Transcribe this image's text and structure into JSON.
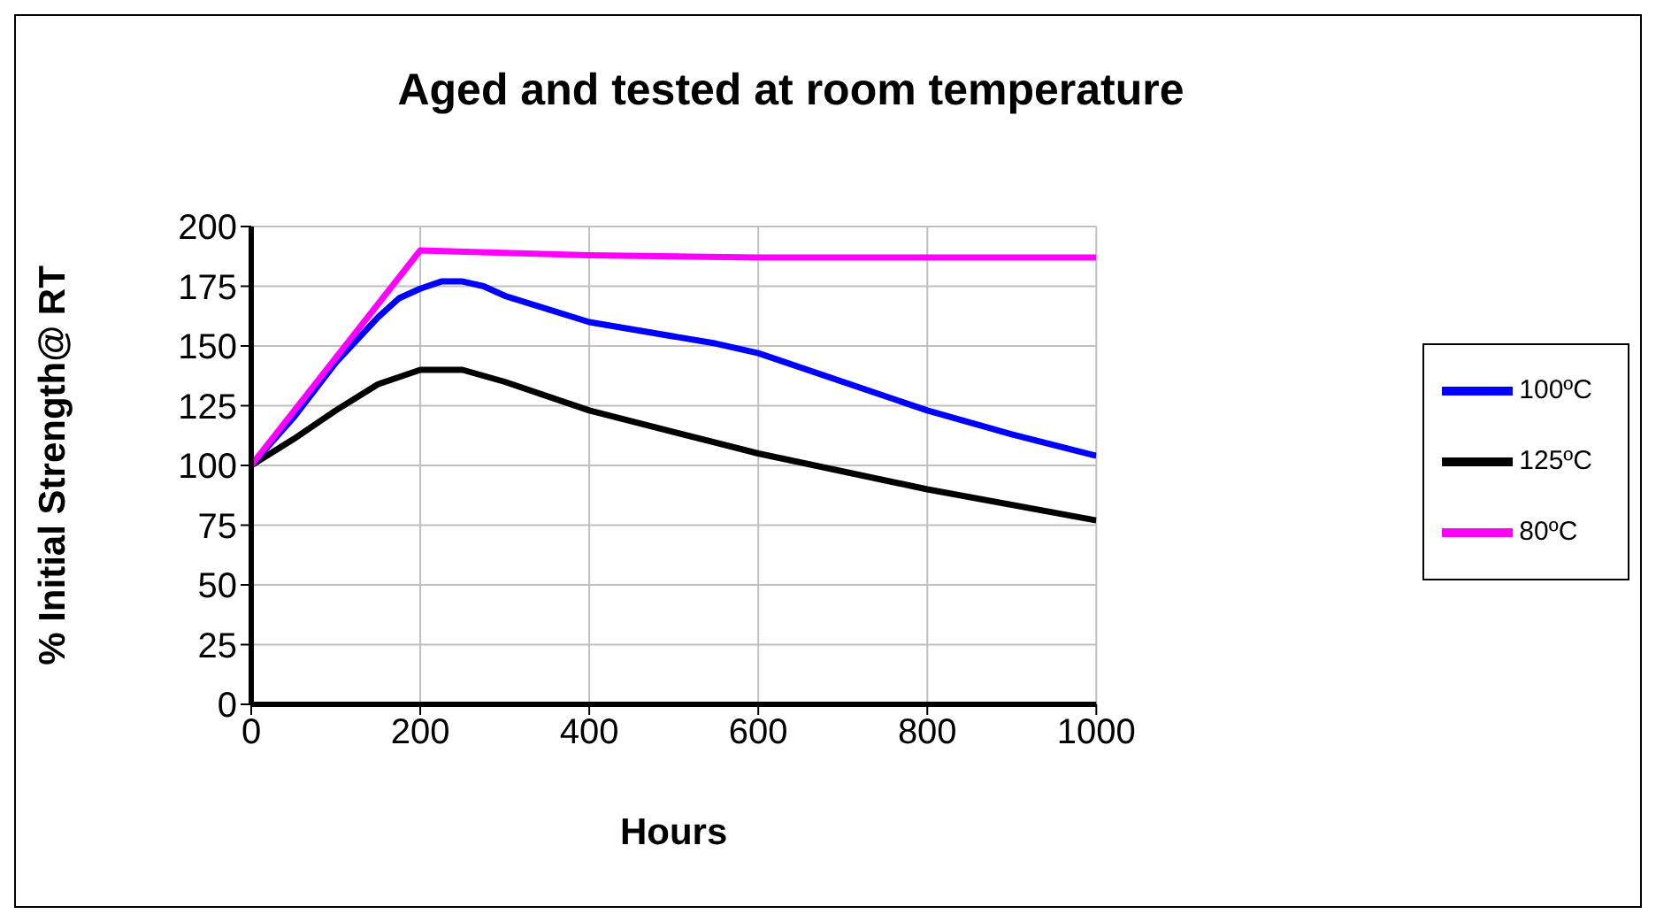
{
  "chart_data": {
    "type": "line",
    "title": "Aged and tested at room temperature",
    "xlabel": "Hours",
    "ylabel": "% Initial Strength@ RT",
    "xlim": [
      0,
      1000
    ],
    "xticks": [
      0,
      200,
      400,
      600,
      800,
      1000
    ],
    "ylim": [
      0,
      200
    ],
    "yticks": [
      0,
      25,
      50,
      75,
      100,
      125,
      150,
      175,
      200
    ],
    "grid": true,
    "legend": "right",
    "line_style": "solid",
    "marker": "none",
    "series": [
      {
        "name": "125ºC",
        "color": "#000000",
        "x": [
          0,
          50,
          100,
          150,
          200,
          250,
          300,
          400,
          600,
          800,
          1000
        ],
        "values": [
          100,
          111,
          123,
          134,
          140,
          140,
          135,
          123,
          105,
          90,
          77
        ]
      },
      {
        "name": "100ºC",
        "color": "#0000ff",
        "x": [
          0,
          50,
          100,
          150,
          175,
          200,
          225,
          250,
          275,
          300,
          400,
          550,
          600,
          800,
          900,
          1000
        ],
        "values": [
          100,
          120,
          143,
          162,
          170,
          174,
          177,
          177,
          175,
          171,
          160,
          151,
          147,
          123,
          113,
          104
        ]
      },
      {
        "name": "80ºC",
        "color": "#ff00ff",
        "x": [
          0,
          200,
          400,
          600,
          1000
        ],
        "values": [
          100,
          190,
          188,
          187,
          187
        ]
      }
    ]
  }
}
